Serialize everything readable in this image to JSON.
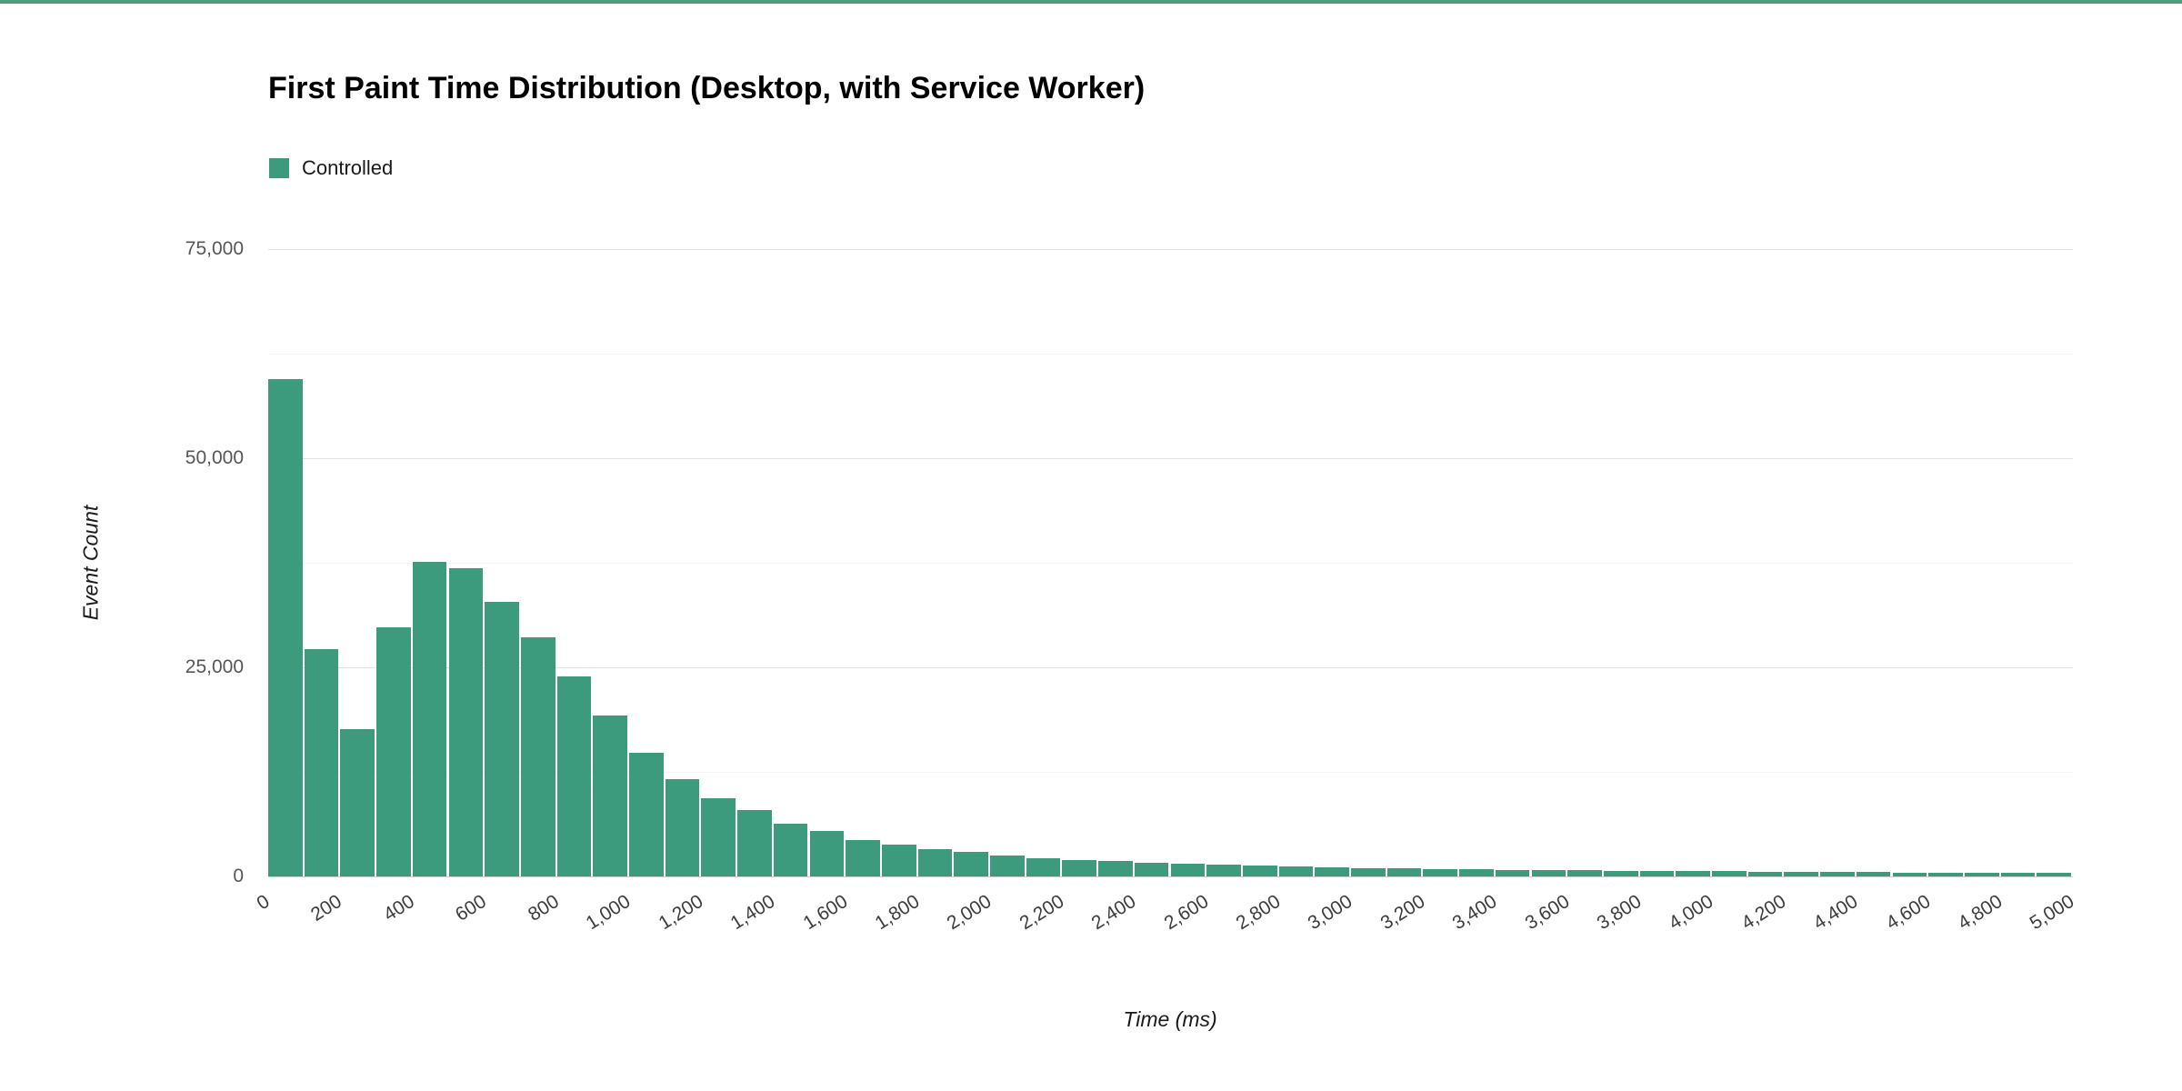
{
  "page": {
    "top_border_color": "#4e9d7c",
    "background": "#ffffff"
  },
  "chart_data": {
    "type": "bar",
    "title": "First Paint Time Distribution (Desktop, with Service Worker)",
    "xlabel": "Time (ms)",
    "ylabel": "Event Count",
    "legend": [
      "Controlled"
    ],
    "legend_position": "top-left",
    "bar_color": "#3d9b7d",
    "grid": true,
    "xlim": [
      0,
      5000
    ],
    "ylim": [
      0,
      75000
    ],
    "bin_width_ms": 100,
    "first_bin_start_ms": 0,
    "y_ticks": [
      0,
      25000,
      50000,
      75000
    ],
    "y_tick_labels": [
      "0",
      "25,000",
      "50,000",
      "75,000"
    ],
    "y_minor_ticks": [
      12500,
      37500,
      62500
    ],
    "x_ticks": [
      0,
      200,
      400,
      600,
      800,
      1000,
      1200,
      1400,
      1600,
      1800,
      2000,
      2200,
      2400,
      2600,
      2800,
      3000,
      3200,
      3400,
      3600,
      3800,
      4000,
      4200,
      4400,
      4600,
      4800,
      5000
    ],
    "x_tick_labels": [
      "0",
      "200",
      "400",
      "600",
      "800",
      "1,000",
      "1,200",
      "1,400",
      "1,600",
      "1,800",
      "2,000",
      "2,200",
      "2,400",
      "2,600",
      "2,800",
      "3,000",
      "3,200",
      "3,400",
      "3,600",
      "3,800",
      "4,000",
      "4,200",
      "4,400",
      "4,600",
      "4,800",
      "5,000"
    ],
    "series": [
      {
        "name": "Controlled",
        "counts": [
          59500,
          27200,
          17600,
          29800,
          37600,
          36800,
          32800,
          28600,
          23900,
          19200,
          14800,
          11600,
          9300,
          7900,
          6300,
          5400,
          4400,
          3800,
          3300,
          2900,
          2500,
          2200,
          2000,
          1800,
          1650,
          1500,
          1400,
          1300,
          1200,
          1100,
          1000,
          950,
          900,
          850,
          800,
          780,
          730,
          700,
          660,
          630,
          600,
          570,
          540,
          520,
          500,
          480,
          460,
          440,
          420,
          400
        ]
      }
    ]
  }
}
